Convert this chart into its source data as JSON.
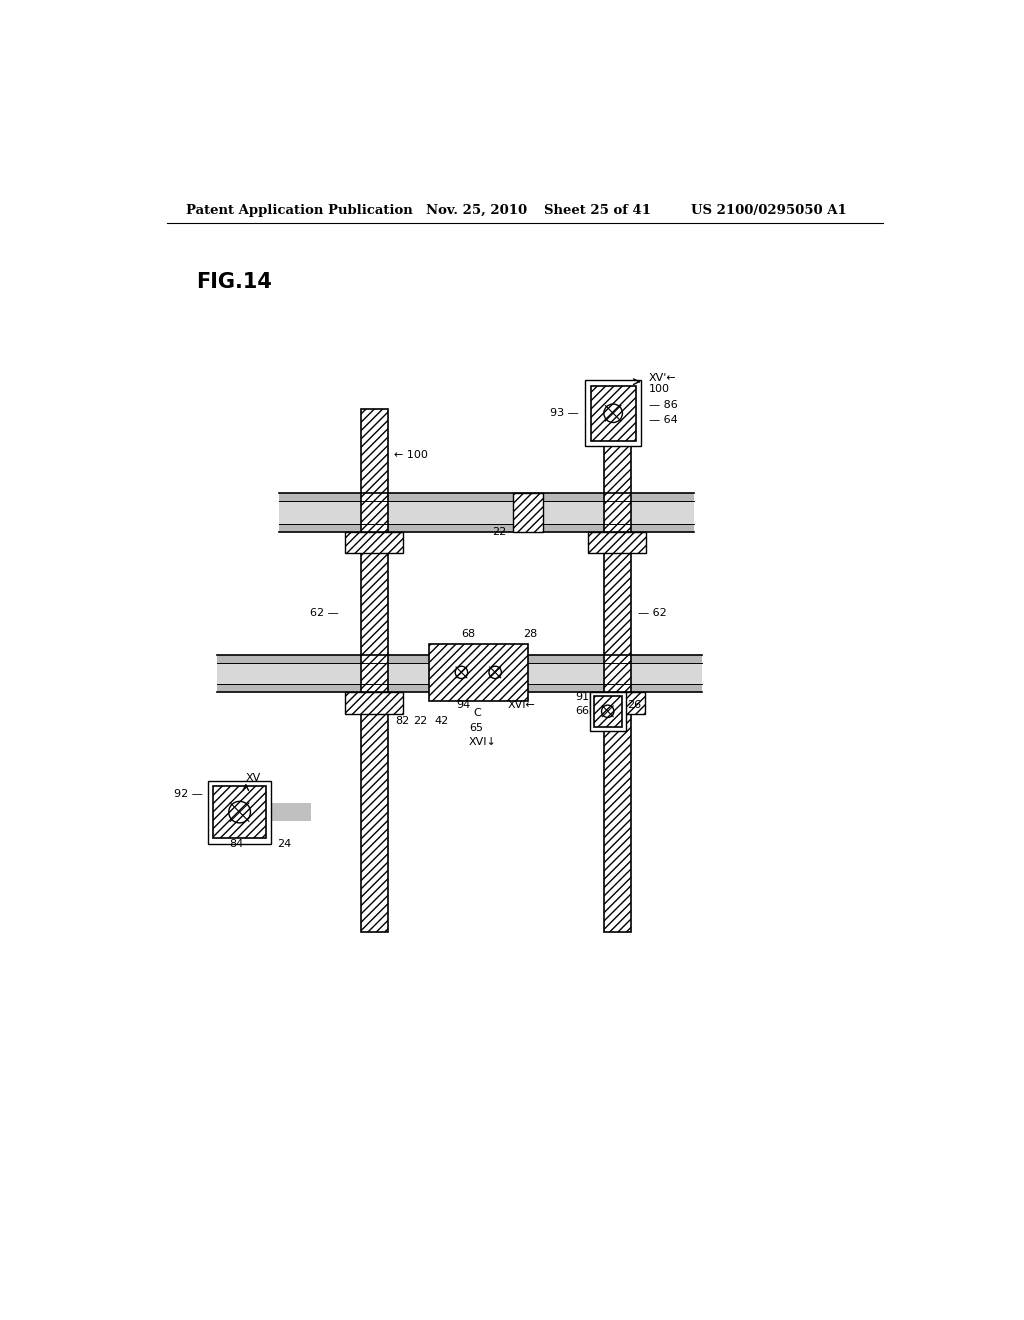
{
  "title_line1": "Patent Application Publication",
  "title_date": "Nov. 25, 2010",
  "title_sheet": "Sheet 25 of 41",
  "title_patent": "US 2100/0295050 A1",
  "fig_label": "FIG.14",
  "background_color": "#ffffff"
}
